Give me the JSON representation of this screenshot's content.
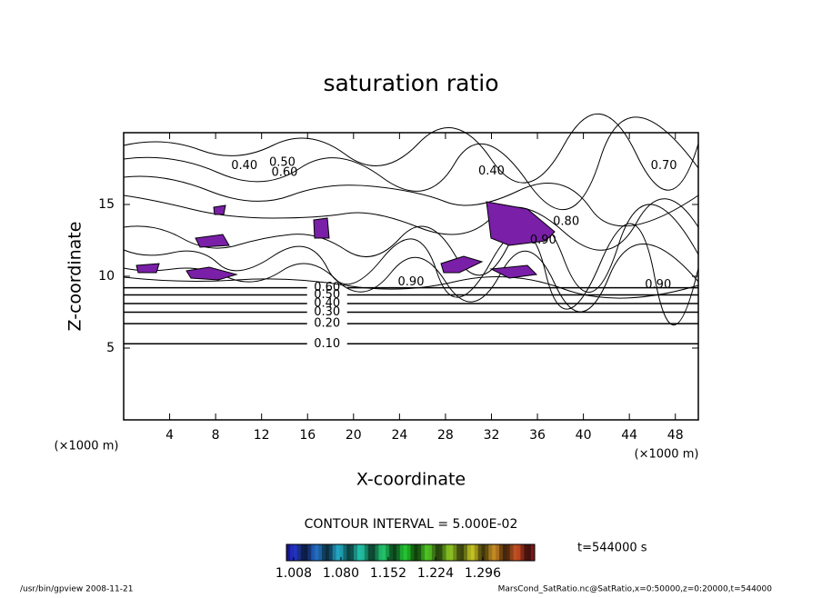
{
  "chart_data": {
    "type": "contour",
    "title": "saturation ratio",
    "xlabel": "X-coordinate",
    "ylabel": "Z-coordinate",
    "x_unit_left": "(×1000 m)",
    "x_unit_right": "(×1000 m)",
    "xlim": [
      0,
      50
    ],
    "ylim": [
      0,
      20
    ],
    "xticks": [
      4,
      8,
      12,
      16,
      20,
      24,
      28,
      32,
      36,
      40,
      44,
      48
    ],
    "yticks": [
      5,
      10,
      15
    ],
    "contours": [
      {
        "label": "0.10",
        "z": 5.3,
        "label_x": 17.7
      },
      {
        "label": "0.20",
        "z": 6.7,
        "label_x": 17.7
      },
      {
        "label": "0.30",
        "z": 7.5,
        "label_x": 17.7
      },
      {
        "label": "0.40",
        "z": 8.1,
        "label_x": 17.7
      },
      {
        "label": "0.50",
        "z": 8.7,
        "label_x": 17.7
      },
      {
        "label": "0.60",
        "z": 9.2,
        "label_x": 17.7
      }
    ],
    "upper_labels": [
      {
        "label": "0.40",
        "x": 10.5,
        "z": 17.7
      },
      {
        "label": "0.50",
        "x": 13.8,
        "z": 17.9
      },
      {
        "label": "0.60",
        "x": 14.0,
        "z": 17.2
      },
      {
        "label": "0.40",
        "x": 32.0,
        "z": 17.3
      },
      {
        "label": "0.70",
        "x": 47.0,
        "z": 17.7
      },
      {
        "label": "0.80",
        "x": 38.5,
        "z": 13.8
      },
      {
        "label": "0.90",
        "x": 36.5,
        "z": 12.5
      },
      {
        "label": "0.90",
        "x": 25.0,
        "z": 9.6
      },
      {
        "label": "0.90",
        "x": 46.5,
        "z": 9.4
      }
    ],
    "contour_interval": "CONTOUR INTERVAL = 5.000E-02",
    "time": "t=544000 s",
    "colorbar": {
      "clim": [
        0.997,
        1.375
      ],
      "ticks": [
        1.008,
        {
          "value": 1.08,
          "label": "1.080"
        },
        1.152,
        1.224,
        1.296
      ]
    },
    "footer_left": "/usr/bin/gpview   2008-11-21",
    "footer_right": "MarsCond_SatRatio.nc@SatRatio,x=0:50000,z=0:20000,t=544000"
  }
}
